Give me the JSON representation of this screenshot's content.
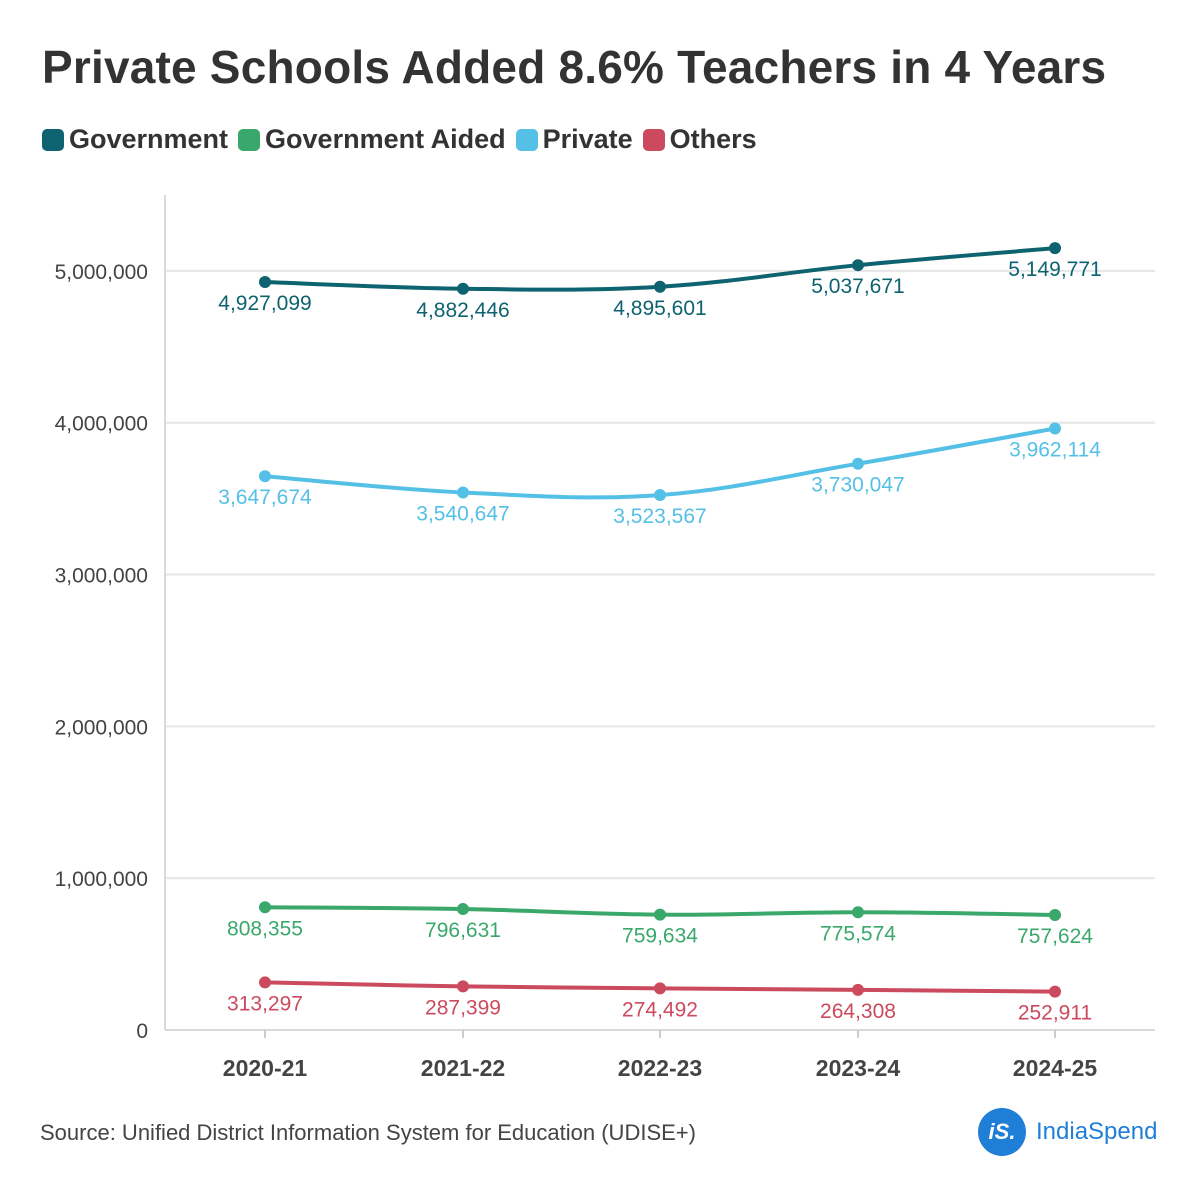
{
  "title": "Private Schools Added 8.6% Teachers in 4 Years",
  "legend": [
    {
      "label": "Government",
      "color": "#0e6370"
    },
    {
      "label": "Government Aided",
      "color": "#3aa86b"
    },
    {
      "label": "Private",
      "color": "#55c0e6"
    },
    {
      "label": "Others",
      "color": "#cc4a5e"
    }
  ],
  "source": "Source: Unified District Information System for Education (UDISE+)",
  "brand": {
    "logo_text": "iS.",
    "name": "IndiaSpend",
    "color": "#1f7fd6"
  },
  "chart_data": {
    "type": "line",
    "title": "Private Schools Added 8.6% Teachers in 4 Years",
    "xlabel": "",
    "ylabel": "",
    "categories": [
      "2020-21",
      "2021-22",
      "2022-23",
      "2023-24",
      "2024-25"
    ],
    "ylim": [
      0,
      5500000
    ],
    "yticks": [
      0,
      1000000,
      2000000,
      3000000,
      4000000,
      5000000
    ],
    "ytick_labels": [
      "0",
      "1,000,000",
      "2,000,000",
      "3,000,000",
      "4,000,000",
      "5,000,000"
    ],
    "series": [
      {
        "name": "Government",
        "color": "#0e6370",
        "values": [
          4927099,
          4882446,
          4895601,
          5037671,
          5149771
        ],
        "labels": [
          "4,927,099",
          "4,882,446",
          "4,895,601",
          "5,037,671",
          "5,149,771"
        ]
      },
      {
        "name": "Government Aided",
        "color": "#3aa86b",
        "values": [
          808355,
          796631,
          759634,
          775574,
          757624
        ],
        "labels": [
          "808,355",
          "796,631",
          "759,634",
          "775,574",
          "757,624"
        ]
      },
      {
        "name": "Private",
        "color": "#55c0e6",
        "values": [
          3647674,
          3540647,
          3523567,
          3730047,
          3962114
        ],
        "labels": [
          "3,647,674",
          "3,540,647",
          "3,523,567",
          "3,730,047",
          "3,962,114"
        ]
      },
      {
        "name": "Others",
        "color": "#cc4a5e",
        "values": [
          313297,
          287399,
          274492,
          264308,
          252911
        ],
        "labels": [
          "313,297",
          "287,399",
          "274,492",
          "264,308",
          "252,911"
        ]
      }
    ]
  }
}
